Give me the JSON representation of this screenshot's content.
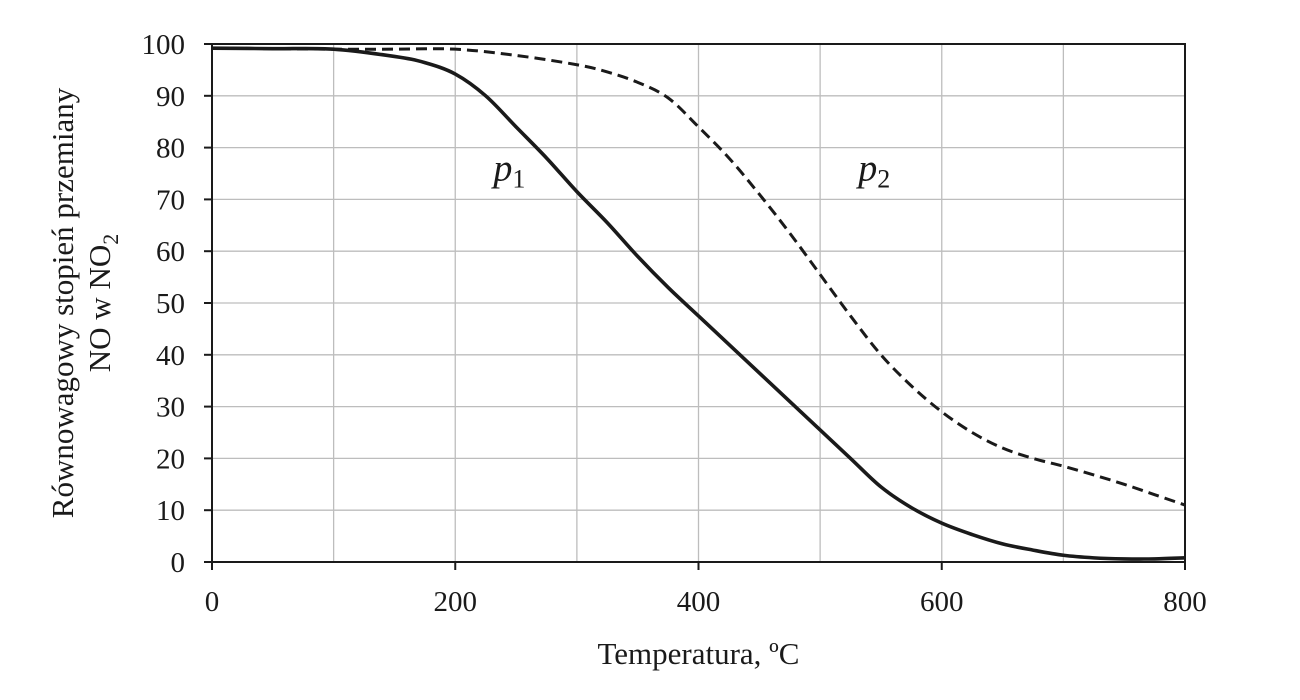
{
  "chart_data": {
    "type": "line",
    "xlabel": "Temperatura, ºC",
    "ylabel_line1": "Równowagowy stopień przemiany",
    "ylabel_line2_main": "NO w NO",
    "ylabel_line2_sub": "2",
    "xlim": [
      0,
      800
    ],
    "ylim": [
      0,
      100
    ],
    "x_ticks": [
      0,
      200,
      400,
      600,
      800
    ],
    "y_ticks": [
      0,
      10,
      20,
      30,
      40,
      50,
      60,
      70,
      80,
      90,
      100
    ],
    "x_gridlines": [
      100,
      200,
      300,
      400,
      500,
      600,
      700
    ],
    "grid": true,
    "series": [
      {
        "name_main": "p",
        "name_sub": "1",
        "style": "solid",
        "color": "#1a1a1a",
        "label_at": [
          205,
          76
        ],
        "x": [
          0,
          50,
          100,
          150,
          175,
          200,
          225,
          250,
          275,
          300,
          325,
          350,
          375,
          400,
          425,
          450,
          475,
          500,
          525,
          550,
          575,
          600,
          625,
          650,
          675,
          700,
          725,
          750,
          775,
          800
        ],
        "y": [
          99.2,
          99.1,
          99.0,
          97.6,
          96.4,
          94.2,
          90.0,
          84.0,
          78.0,
          71.5,
          65.5,
          59.0,
          53.0,
          47.5,
          42.0,
          36.5,
          31.0,
          25.5,
          20.0,
          14.5,
          10.5,
          7.5,
          5.3,
          3.5,
          2.3,
          1.3,
          0.8,
          0.6,
          0.6,
          0.8
        ]
      },
      {
        "name_main": "p",
        "name_sub": "2",
        "style": "dashed",
        "color": "#1a1a1a",
        "label_at": [
          505,
          76
        ],
        "x": [
          0,
          50,
          100,
          150,
          200,
          250,
          300,
          325,
          350,
          375,
          400,
          425,
          450,
          475,
          500,
          525,
          550,
          575,
          600,
          625,
          650,
          675,
          700,
          725,
          750,
          775,
          800
        ],
        "y": [
          99.2,
          99.1,
          99.0,
          99.0,
          99.0,
          97.8,
          96.0,
          94.6,
          92.6,
          89.6,
          84.0,
          78.0,
          71.0,
          63.5,
          55.5,
          47.5,
          40.0,
          34.0,
          29.0,
          25.0,
          22.0,
          20.0,
          18.5,
          16.8,
          15.0,
          13.0,
          11.0
        ]
      }
    ]
  }
}
